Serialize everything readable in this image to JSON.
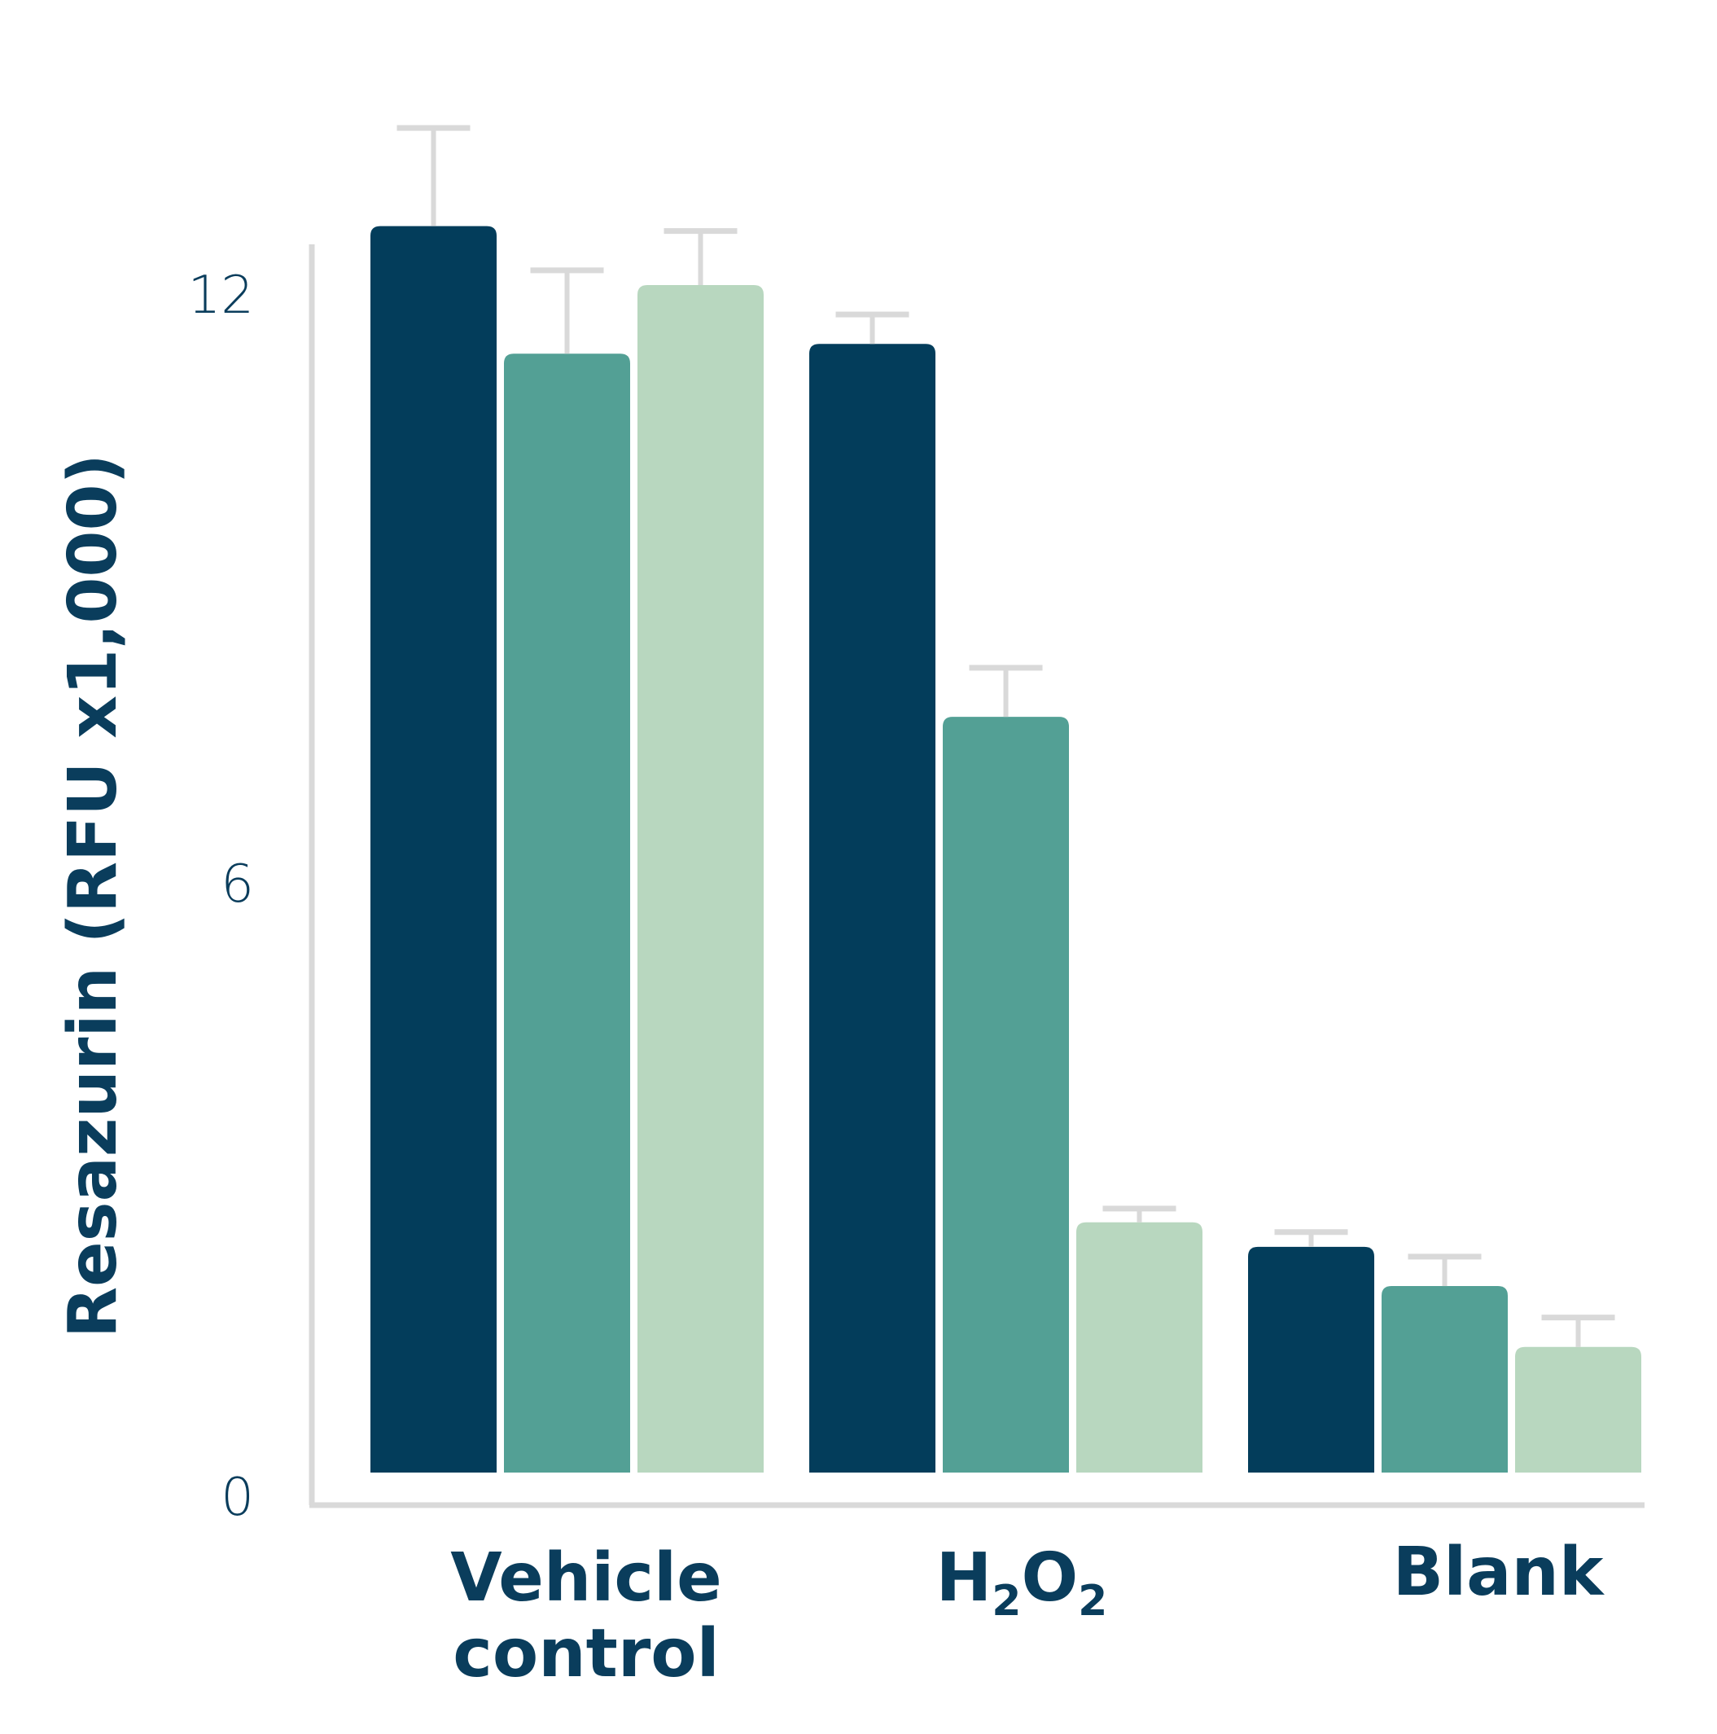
{
  "chart_data": {
    "type": "bar",
    "ylabel": "Resazurin (RFU x1,000)",
    "xlabel": "",
    "ylim": [
      0,
      12.6
    ],
    "yticks": [
      "0",
      "6",
      "12"
    ],
    "category_labels": [
      {
        "lines": [
          "Vehicle",
          "control"
        ]
      },
      {
        "lines": [
          "H",
          "2",
          "O",
          "2"
        ]
      },
      {
        "lines": [
          "Blank"
        ]
      }
    ],
    "categories": [
      "Vehicle control",
      "H2O2",
      "Blank"
    ],
    "series": [
      {
        "values": [
          12.7,
          11.5,
          2.3
        ],
        "errors": [
          1.0,
          0.3,
          0.15
        ],
        "color": "#033d5b"
      },
      {
        "values": [
          11.4,
          7.7,
          1.9
        ],
        "errors": [
          0.85,
          0.5,
          0.3
        ],
        "color": "#53a095"
      },
      {
        "values": [
          12.1,
          2.55,
          1.28
        ],
        "errors": [
          0.55,
          0.14,
          0.3
        ],
        "color": "#b8d7bf"
      }
    ],
    "error_bar_color": "#d9d9d9",
    "axis_color": "#d9d9d9",
    "grid": false,
    "legend": "none"
  }
}
